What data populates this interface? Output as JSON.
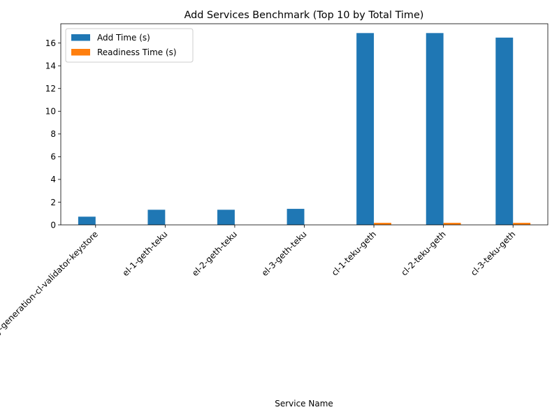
{
  "chart_data": {
    "type": "bar",
    "title": "Add Services Benchmark (Top 10 by Total Time)",
    "xlabel": "Service Name",
    "ylabel": "",
    "categories": [
      "validator-key-generation-cl-validator-keystore",
      "el-1-geth-teku",
      "el-2-geth-teku",
      "el-3-geth-teku",
      "cl-1-teku-geth",
      "cl-2-teku-geth",
      "cl-3-teku-geth"
    ],
    "series": [
      {
        "name": "Add Time (s)",
        "color": "#1f77b4",
        "values": [
          0.72,
          1.33,
          1.33,
          1.41,
          16.88,
          16.88,
          16.48
        ]
      },
      {
        "name": "Readiness Time (s)",
        "color": "#ff7f0e",
        "values": [
          0.0,
          0.0,
          0.0,
          0.0,
          0.18,
          0.18,
          0.18
        ]
      }
    ],
    "ylim": [
      0,
      17.7
    ],
    "yticks": [
      "0",
      "2",
      "4",
      "6",
      "8",
      "10",
      "12",
      "14",
      "16"
    ],
    "legend_position": "top-left",
    "grid": false
  }
}
